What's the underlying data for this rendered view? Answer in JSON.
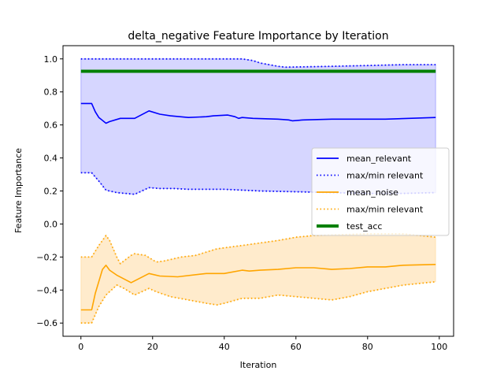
{
  "chart_data": {
    "type": "line",
    "title": "delta_negative Feature Importance by Iteration",
    "xlabel": "Iteration",
    "ylabel": "Feature Importance",
    "xlim": [
      -5,
      104
    ],
    "ylim": [
      -0.68,
      1.08
    ],
    "xticks": [
      0,
      20,
      40,
      60,
      80,
      100
    ],
    "yticks": [
      -0.6,
      -0.4,
      -0.2,
      0.0,
      0.2,
      0.4,
      0.6,
      0.8,
      1.0
    ],
    "xtick_labels": [
      "0",
      "20",
      "40",
      "60",
      "80",
      "100"
    ],
    "ytick_labels": [
      "−0.6",
      "−0.4",
      "−0.2",
      "0.0",
      "0.2",
      "0.4",
      "0.6",
      "0.8",
      "1.0"
    ],
    "grid": false,
    "legend_position": "center-right",
    "colors": {
      "relevant": "#0000ff",
      "relevant_fill": "#ccccff",
      "noise": "#ffa500",
      "noise_fill": "#ffe9c6",
      "test_acc": "#008000"
    },
    "legend": [
      {
        "label": "mean_relevant",
        "color": "#0000ff",
        "style": "solid"
      },
      {
        "label": "max/min relevant",
        "color": "#0000ff",
        "style": "dotted"
      },
      {
        "label": "mean_noise",
        "color": "#ffa500",
        "style": "solid"
      },
      {
        "label": "max/min relevant",
        "color": "#ffa500",
        "style": "dotted"
      },
      {
        "label": "test_acc",
        "color": "#008000",
        "style": "thick"
      }
    ],
    "series": {
      "mean_relevant": [
        [
          0,
          0.73
        ],
        [
          3,
          0.73
        ],
        [
          4,
          0.68
        ],
        [
          5,
          0.645
        ],
        [
          7,
          0.61
        ],
        [
          8,
          0.62
        ],
        [
          11,
          0.64
        ],
        [
          15,
          0.64
        ],
        [
          19,
          0.685
        ],
        [
          22,
          0.665
        ],
        [
          25,
          0.655
        ],
        [
          30,
          0.645
        ],
        [
          35,
          0.65
        ],
        [
          37,
          0.655
        ],
        [
          41,
          0.66
        ],
        [
          43,
          0.65
        ],
        [
          44,
          0.64
        ],
        [
          45,
          0.645
        ],
        [
          48,
          0.64
        ],
        [
          55,
          0.635
        ],
        [
          58,
          0.63
        ],
        [
          59,
          0.625
        ],
        [
          62,
          0.63
        ],
        [
          70,
          0.635
        ],
        [
          75,
          0.635
        ],
        [
          85,
          0.635
        ],
        [
          99,
          0.645
        ]
      ],
      "relevant_max": [
        [
          0,
          1.0
        ],
        [
          45,
          1.0
        ],
        [
          48,
          0.99
        ],
        [
          50,
          0.975
        ],
        [
          55,
          0.955
        ],
        [
          57,
          0.95
        ],
        [
          70,
          0.955
        ],
        [
          80,
          0.96
        ],
        [
          90,
          0.965
        ],
        [
          99,
          0.965
        ]
      ],
      "relevant_min": [
        [
          0,
          0.31
        ],
        [
          3,
          0.31
        ],
        [
          5,
          0.26
        ],
        [
          7,
          0.205
        ],
        [
          10,
          0.19
        ],
        [
          15,
          0.18
        ],
        [
          19,
          0.22
        ],
        [
          22,
          0.215
        ],
        [
          26,
          0.215
        ],
        [
          30,
          0.21
        ],
        [
          40,
          0.21
        ],
        [
          50,
          0.2
        ],
        [
          60,
          0.195
        ],
        [
          70,
          0.19
        ],
        [
          80,
          0.185
        ],
        [
          90,
          0.185
        ],
        [
          99,
          0.19
        ]
      ],
      "mean_noise": [
        [
          0,
          -0.52
        ],
        [
          3,
          -0.52
        ],
        [
          4,
          -0.42
        ],
        [
          6,
          -0.275
        ],
        [
          7,
          -0.25
        ],
        [
          8,
          -0.28
        ],
        [
          10,
          -0.31
        ],
        [
          14,
          -0.355
        ],
        [
          19,
          -0.3
        ],
        [
          22,
          -0.315
        ],
        [
          27,
          -0.32
        ],
        [
          35,
          -0.3
        ],
        [
          40,
          -0.3
        ],
        [
          45,
          -0.28
        ],
        [
          47,
          -0.285
        ],
        [
          50,
          -0.28
        ],
        [
          55,
          -0.275
        ],
        [
          60,
          -0.265
        ],
        [
          65,
          -0.265
        ],
        [
          70,
          -0.275
        ],
        [
          75,
          -0.27
        ],
        [
          80,
          -0.26
        ],
        [
          85,
          -0.26
        ],
        [
          90,
          -0.25
        ],
        [
          99,
          -0.245
        ]
      ],
      "noise_max": [
        [
          0,
          -0.2
        ],
        [
          3,
          -0.2
        ],
        [
          5,
          -0.13
        ],
        [
          7,
          -0.07
        ],
        [
          8,
          -0.1
        ],
        [
          10,
          -0.2
        ],
        [
          11,
          -0.24
        ],
        [
          14,
          -0.19
        ],
        [
          15,
          -0.18
        ],
        [
          18,
          -0.19
        ],
        [
          21,
          -0.23
        ],
        [
          23,
          -0.225
        ],
        [
          28,
          -0.2
        ],
        [
          32,
          -0.19
        ],
        [
          35,
          -0.17
        ],
        [
          38,
          -0.15
        ],
        [
          45,
          -0.13
        ],
        [
          55,
          -0.1
        ],
        [
          60,
          -0.08
        ],
        [
          65,
          -0.07
        ],
        [
          80,
          -0.06
        ],
        [
          90,
          -0.06
        ],
        [
          99,
          -0.08
        ]
      ],
      "noise_min": [
        [
          0,
          -0.6
        ],
        [
          3,
          -0.6
        ],
        [
          5,
          -0.5
        ],
        [
          7,
          -0.43
        ],
        [
          10,
          -0.37
        ],
        [
          12,
          -0.39
        ],
        [
          15,
          -0.43
        ],
        [
          19,
          -0.39
        ],
        [
          21,
          -0.41
        ],
        [
          25,
          -0.44
        ],
        [
          30,
          -0.46
        ],
        [
          35,
          -0.48
        ],
        [
          38,
          -0.49
        ],
        [
          40,
          -0.48
        ],
        [
          45,
          -0.45
        ],
        [
          50,
          -0.45
        ],
        [
          55,
          -0.43
        ],
        [
          60,
          -0.44
        ],
        [
          65,
          -0.45
        ],
        [
          70,
          -0.46
        ],
        [
          75,
          -0.44
        ],
        [
          80,
          -0.41
        ],
        [
          85,
          -0.39
        ],
        [
          90,
          -0.37
        ],
        [
          99,
          -0.35
        ]
      ],
      "test_acc": [
        [
          0,
          0.925
        ],
        [
          99,
          0.925
        ]
      ]
    }
  }
}
